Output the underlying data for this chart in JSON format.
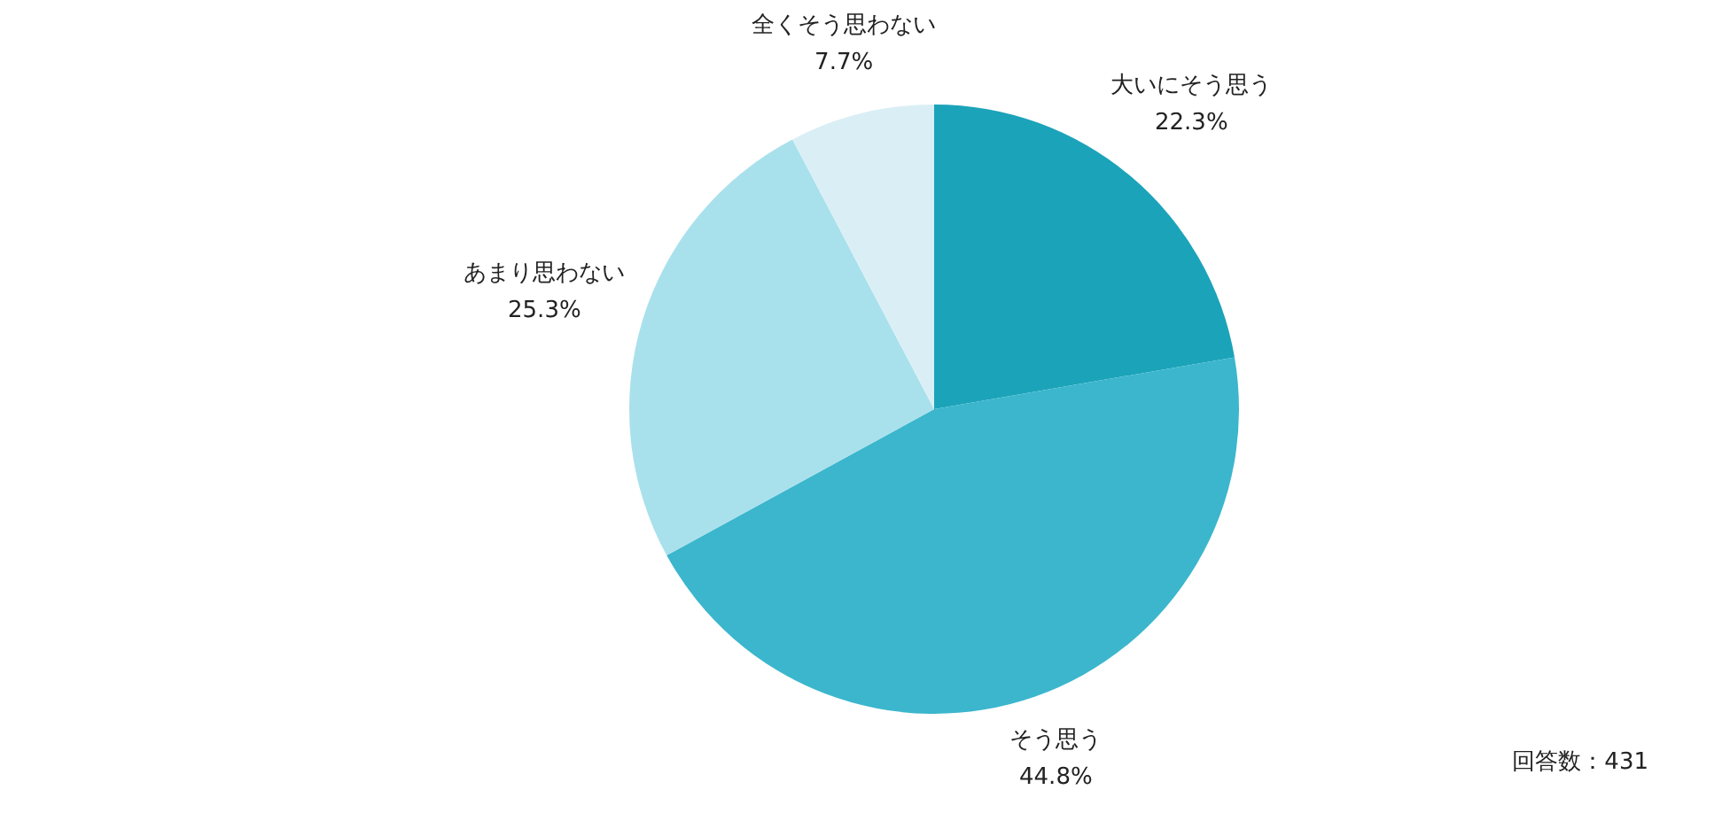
{
  "chart_data": {
    "type": "pie",
    "categories": [
      "大いにそう思う",
      "そう思う",
      "あまり思わない",
      "全くそう思わない"
    ],
    "values": [
      22.3,
      44.8,
      25.3,
      7.7
    ],
    "colors": [
      "#1ba3b9",
      "#3bb6cd",
      "#a8e1ec",
      "#daeff5"
    ],
    "value_labels": [
      "22.3%",
      "44.8%",
      "25.3%",
      "7.7%"
    ],
    "annotations": [
      "回答数：431"
    ]
  }
}
